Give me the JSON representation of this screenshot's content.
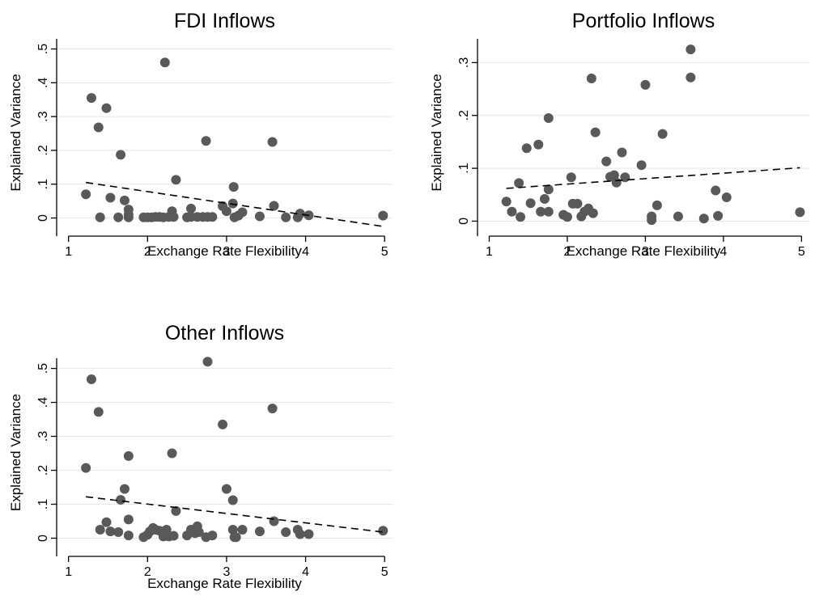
{
  "chart_data": [
    {
      "type": "scatter",
      "title": "FDI Inflows",
      "xlabel": "Exchange Rate Flexibility",
      "ylabel": "Explained Variance",
      "xlim": [
        0.85,
        5.1
      ],
      "ylim": [
        -0.025,
        0.53
      ],
      "xticks": [
        "1",
        "2",
        "3",
        "4",
        "5"
      ],
      "xtick_values": [
        1,
        2,
        3,
        4,
        5
      ],
      "yticks": [
        "0",
        ".1",
        ".2",
        ".3",
        ".4",
        ".5"
      ],
      "ytick_values": [
        0,
        0.1,
        0.2,
        0.3,
        0.4,
        0.5
      ],
      "grid": true,
      "points": [
        [
          1.22,
          0.07
        ],
        [
          1.29,
          0.355
        ],
        [
          1.38,
          0.268
        ],
        [
          1.4,
          0.002
        ],
        [
          1.48,
          0.325
        ],
        [
          1.53,
          0.06
        ],
        [
          1.63,
          0.002
        ],
        [
          1.66,
          0.187
        ],
        [
          1.71,
          0.052
        ],
        [
          1.76,
          0.025
        ],
        [
          1.76,
          0.01
        ],
        [
          1.76,
          0.002
        ],
        [
          1.95,
          0.002
        ],
        [
          2.0,
          0.002
        ],
        [
          2.05,
          0.002
        ],
        [
          2.1,
          0.003
        ],
        [
          2.15,
          0.003
        ],
        [
          2.2,
          0.002
        ],
        [
          2.22,
          0.46
        ],
        [
          2.27,
          0.003
        ],
        [
          2.31,
          0.02
        ],
        [
          2.33,
          0.003
        ],
        [
          2.36,
          0.113
        ],
        [
          2.5,
          0.002
        ],
        [
          2.55,
          0.028
        ],
        [
          2.55,
          0.003
        ],
        [
          2.63,
          0.003
        ],
        [
          2.7,
          0.003
        ],
        [
          2.74,
          0.228
        ],
        [
          2.76,
          0.003
        ],
        [
          2.82,
          0.003
        ],
        [
          2.95,
          0.035
        ],
        [
          3.0,
          0.02
        ],
        [
          3.08,
          0.043
        ],
        [
          3.09,
          0.092
        ],
        [
          3.1,
          0.002
        ],
        [
          3.15,
          0.007
        ],
        [
          3.2,
          0.017
        ],
        [
          3.42,
          0.005
        ],
        [
          3.58,
          0.225
        ],
        [
          3.6,
          0.036
        ],
        [
          3.75,
          0.002
        ],
        [
          3.9,
          0.002
        ],
        [
          3.93,
          0.013
        ],
        [
          4.04,
          0.008
        ],
        [
          4.98,
          0.007
        ]
      ],
      "fit_line": {
        "x": [
          1.22,
          4.98
        ],
        "y": [
          0.105,
          -0.025
        ]
      }
    },
    {
      "type": "scatter",
      "title": "Portfolio Inflows",
      "xlabel": "Exchange Rate Flexibility",
      "ylabel": "Explained Variance",
      "xlim": [
        0.85,
        5.1
      ],
      "ylim": [
        -0.01,
        0.345
      ],
      "xticks": [
        "1",
        "2",
        "3",
        "4",
        "5"
      ],
      "xtick_values": [
        1,
        2,
        3,
        4,
        5
      ],
      "yticks": [
        "0",
        ".1",
        ".2",
        ".3"
      ],
      "ytick_values": [
        0,
        0.1,
        0.2,
        0.3
      ],
      "grid": true,
      "points": [
        [
          1.22,
          0.037
        ],
        [
          1.29,
          0.018
        ],
        [
          1.38,
          0.072
        ],
        [
          1.4,
          0.008
        ],
        [
          1.48,
          0.138
        ],
        [
          1.53,
          0.034
        ],
        [
          1.63,
          0.145
        ],
        [
          1.66,
          0.018
        ],
        [
          1.71,
          0.042
        ],
        [
          1.76,
          0.195
        ],
        [
          1.76,
          0.06
        ],
        [
          1.76,
          0.018
        ],
        [
          1.95,
          0.012
        ],
        [
          2.0,
          0.008
        ],
        [
          2.05,
          0.083
        ],
        [
          2.07,
          0.033
        ],
        [
          2.13,
          0.033
        ],
        [
          2.18,
          0.009
        ],
        [
          2.22,
          0.018
        ],
        [
          2.27,
          0.024
        ],
        [
          2.31,
          0.27
        ],
        [
          2.33,
          0.015
        ],
        [
          2.36,
          0.168
        ],
        [
          2.5,
          0.113
        ],
        [
          2.55,
          0.084
        ],
        [
          2.6,
          0.087
        ],
        [
          2.63,
          0.073
        ],
        [
          2.7,
          0.13
        ],
        [
          2.74,
          0.083
        ],
        [
          2.95,
          0.106
        ],
        [
          3.0,
          0.258
        ],
        [
          3.08,
          0.009
        ],
        [
          3.08,
          0.002
        ],
        [
          3.15,
          0.03
        ],
        [
          3.22,
          0.165
        ],
        [
          3.42,
          0.009
        ],
        [
          3.58,
          0.325
        ],
        [
          3.58,
          0.272
        ],
        [
          3.75,
          0.005
        ],
        [
          3.9,
          0.058
        ],
        [
          3.93,
          0.01
        ],
        [
          4.04,
          0.045
        ],
        [
          4.98,
          0.017
        ]
      ],
      "fit_line": {
        "x": [
          1.22,
          4.98
        ],
        "y": [
          0.062,
          0.101
        ]
      }
    },
    {
      "type": "scatter",
      "title": "Other Inflows",
      "xlabel": "Exchange Rate Flexibility",
      "ylabel": "Explained Variance",
      "xlim": [
        0.85,
        5.1
      ],
      "ylim": [
        -0.025,
        0.53
      ],
      "xticks": [
        "1",
        "2",
        "3",
        "4",
        "5"
      ],
      "xtick_values": [
        1,
        2,
        3,
        4,
        5
      ],
      "yticks": [
        "0",
        ".1",
        ".2",
        ".3",
        ".4",
        ".5"
      ],
      "ytick_values": [
        0,
        0.1,
        0.2,
        0.3,
        0.4,
        0.5
      ],
      "grid": true,
      "points": [
        [
          1.22,
          0.207
        ],
        [
          1.29,
          0.468
        ],
        [
          1.38,
          0.372
        ],
        [
          1.4,
          0.025
        ],
        [
          1.48,
          0.047
        ],
        [
          1.53,
          0.02
        ],
        [
          1.63,
          0.018
        ],
        [
          1.66,
          0.113
        ],
        [
          1.71,
          0.145
        ],
        [
          1.76,
          0.242
        ],
        [
          1.76,
          0.055
        ],
        [
          1.76,
          0.008
        ],
        [
          1.95,
          0.003
        ],
        [
          2.0,
          0.01
        ],
        [
          2.03,
          0.02
        ],
        [
          2.07,
          0.03
        ],
        [
          2.1,
          0.025
        ],
        [
          2.15,
          0.022
        ],
        [
          2.2,
          0.005
        ],
        [
          2.24,
          0.025
        ],
        [
          2.27,
          0.005
        ],
        [
          2.31,
          0.25
        ],
        [
          2.33,
          0.007
        ],
        [
          2.36,
          0.08
        ],
        [
          2.5,
          0.008
        ],
        [
          2.55,
          0.025
        ],
        [
          2.6,
          0.015
        ],
        [
          2.63,
          0.035
        ],
        [
          2.65,
          0.018
        ],
        [
          2.74,
          0.003
        ],
        [
          2.76,
          0.52
        ],
        [
          2.82,
          0.008
        ],
        [
          2.95,
          0.335
        ],
        [
          3.0,
          0.145
        ],
        [
          3.08,
          0.112
        ],
        [
          3.08,
          0.025
        ],
        [
          3.1,
          0.003
        ],
        [
          3.12,
          0.003
        ],
        [
          3.2,
          0.025
        ],
        [
          3.42,
          0.02
        ],
        [
          3.58,
          0.382
        ],
        [
          3.6,
          0.05
        ],
        [
          3.75,
          0.018
        ],
        [
          3.9,
          0.025
        ],
        [
          3.93,
          0.012
        ],
        [
          4.04,
          0.012
        ],
        [
          4.98,
          0.022
        ]
      ],
      "fit_line": {
        "x": [
          1.22,
          4.98
        ],
        "y": [
          0.122,
          0.018
        ]
      }
    }
  ]
}
